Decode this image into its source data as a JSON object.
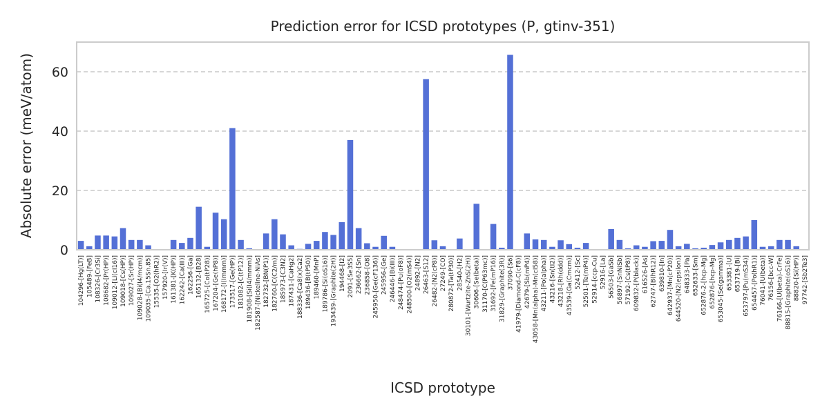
{
  "chart_data": {
    "type": "bar",
    "title": "Prediction error for ICSD prototypes (P, gtinv-351)",
    "xlabel": "ICSD prototype",
    "ylabel": "Absolute error (meV/atom)",
    "ylim": [
      0,
      70
    ],
    "yticks": [
      0,
      20,
      40,
      60
    ],
    "grid": "horizontal dashed",
    "bar_color": "#5470d6",
    "categories": [
      "104296-[Hg(LT)]",
      "105489-[FeB]",
      "108326-[Cr3Si]",
      "108682-[Pr(HP)]",
      "109012-[Li(cI16)]",
      "109018-[Cs(HP)]",
      "109027-[Sr(HP)]",
      "109028-[Bi(I4/mcm)]",
      "109035-[Ca.15Sn.85]",
      "15535-[O2(hR2)]",
      "157920-[Ir(V)]",
      "161381-[K(HP)]",
      "162242-[Ca(III)]",
      "162256-[Ga]",
      "165132-[B28]",
      "165725-[Co(tP28)]",
      "167204-[Ge(hP8)]",
      "168172-[I(Immm)]",
      "173517-[Ge(HP)]",
      "181082-[C(tP12)]",
      "181908-[Si(I4/mmm)]",
      "182587-[Nickeline-NiAs]",
      "182732-[BN(P1)]",
      "182760-[C(C2/m)]",
      "185973-[C3N2]",
      "187431-[CaHg2]",
      "188336-[Ca8(x)Ca2]",
      "189436-[B(tP50)]",
      "189460-[MnP]",
      "189786-[Si(oS16)]",
      "193439-[Graphite(2H)]",
      "194468-[I2]",
      "2091-[Se3S5]",
      "236662-[Sn]",
      "236858-[O8]",
      "245950-[Ge(cF136)]",
      "245956-[Ge]",
      "246446-[Bi(III)]",
      "248474-[Pu(oF8)]",
      "248500-[O2(mS4)]",
      "24892-[N2]",
      "26463-[S12]",
      "26482-[N2(cP8)]",
      "27249-[CO]",
      "280872-[Ta(tP30)]",
      "28540-[H2]",
      "30101-[Wurtzite-ZnS(2H)]",
      "30606-[Se(beta)]",
      "31170-[C(P63mc)]",
      "31692-[Fe(mP16)]",
      "31829-[Graphite(3R)]",
      "37090-[S6]",
      "41979-[Diamond-C(cF8)]",
      "42679-[Sb(mP4)]",
      "43058-[Mn(alpha)-Mn(cI58)]",
      "43211-[Po(alpha)]",
      "43216-[Sn(tI2)]",
      "43218-[Rh(ddd)]",
      "43539-[Ga(Cmcm)]",
      "52412-[Sc]",
      "52501-[Te(mP4)]",
      "52914-[ccp-Cu]",
      "52916-[La]",
      "56503-[GaSb]",
      "56897-[SnNiSb]",
      "57192-[Cs(tP8)]",
      "609832-[P(black)]",
      "616526-[As]",
      "62747-[B(hR12)]",
      "639810-[In]",
      "642937-[Mn(cP20)]",
      "644520-[N2(epsilon)]",
      "648333-[Pa]",
      "652633-[Sm]",
      "652876-2-[hcp-Mg]",
      "652876-[hcp-Mg]",
      "653045-[Se(gamma)]",
      "653381-[U]",
      "653719-[Bi]",
      "653797-[Pu(mS34)]",
      "654457-[Po(hR1)]",
      "76041-[U(beta)]",
      "76156-[bcc-W]",
      "76166-[U(beta)-CrFe]",
      "88815-[Graphite(oS16)]",
      "88820-[Si(HP)]",
      "97742-[Sb2Te3]"
    ],
    "values": [
      3.0,
      1.2,
      4.8,
      4.8,
      4.5,
      7.3,
      3.3,
      3.3,
      1.5,
      0.2,
      0.2,
      3.3,
      2.3,
      4.0,
      14.5,
      1.0,
      12.5,
      10.3,
      41.0,
      3.3,
      0.5,
      0.2,
      5.5,
      10.3,
      5.2,
      1.5,
      0.3,
      2.0,
      3.0,
      6.0,
      5.0,
      9.3,
      37.0,
      7.3,
      2.2,
      1.0,
      4.7,
      1.0,
      0.2,
      0.2,
      0.2,
      57.5,
      3.2,
      1.2,
      0.2,
      3.8,
      0.2,
      15.5,
      0.2,
      8.7,
      0.7,
      65.7,
      0.2,
      5.5,
      3.5,
      3.3,
      1.0,
      3.2,
      1.9,
      0.7,
      2.3,
      0.2,
      0.2,
      7.0,
      3.3,
      0.5,
      1.5,
      1.0,
      2.9,
      3.0,
      6.7,
      1.2,
      2.0,
      0.5,
      0.7,
      1.6,
      2.5,
      3.3,
      4.0,
      4.5,
      10.0,
      1.0,
      1.2,
      3.3,
      3.3,
      1.2,
      0.2
    ]
  }
}
